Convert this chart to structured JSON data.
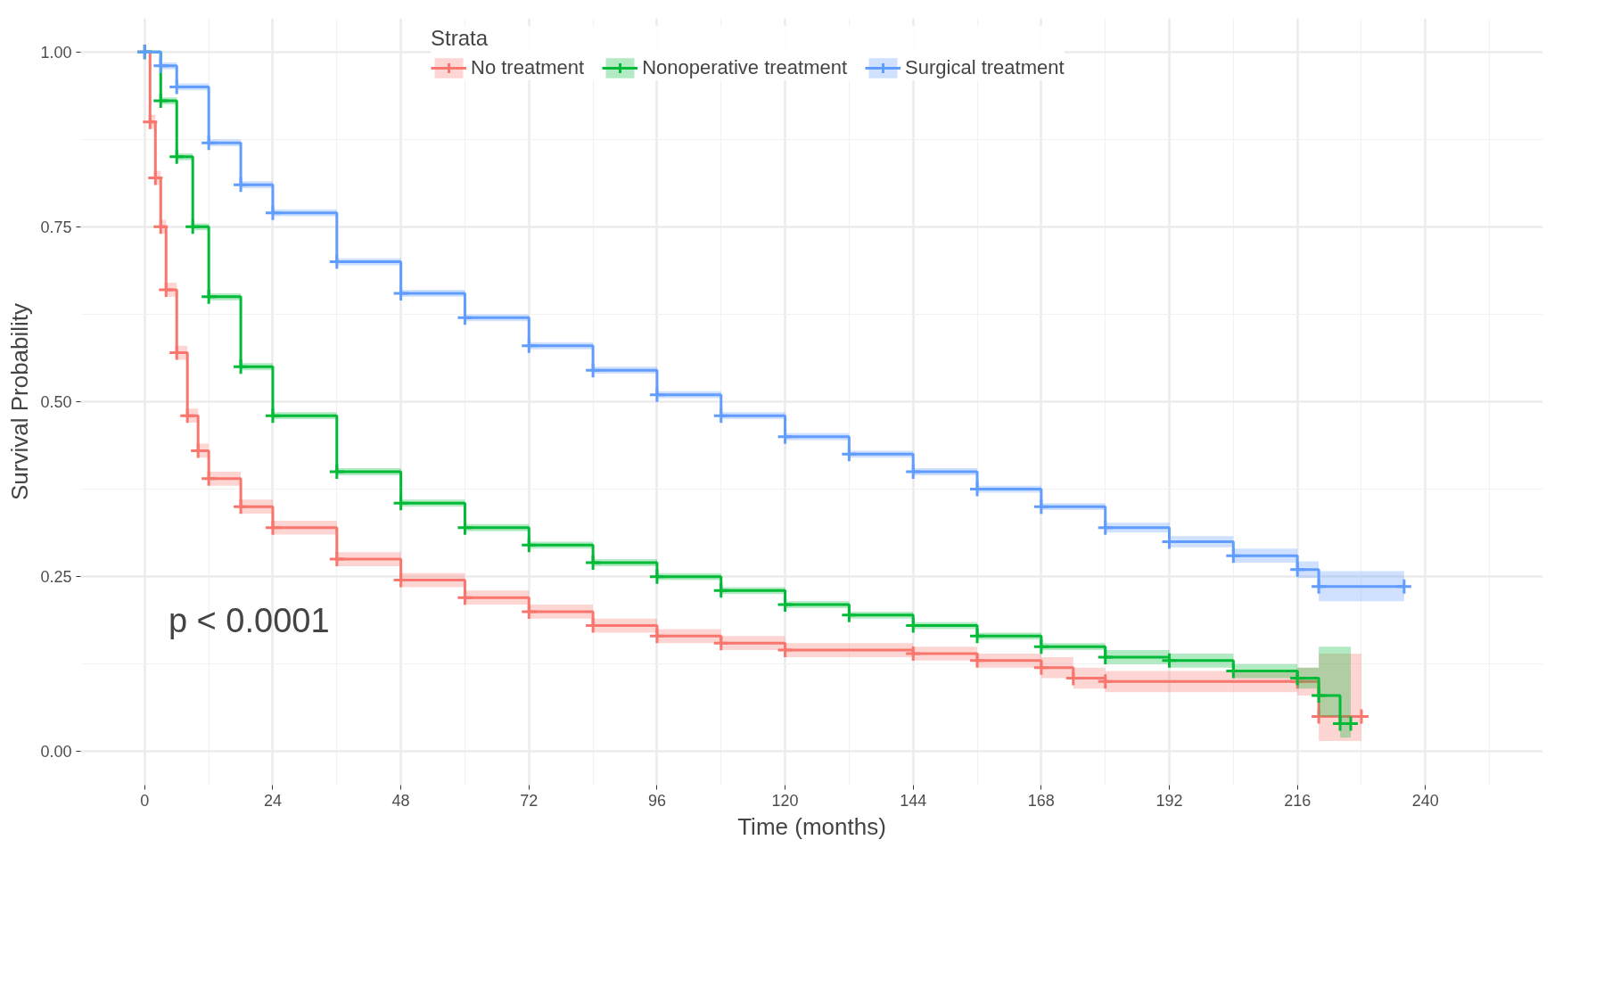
{
  "chart_data": {
    "type": "step",
    "xlabel": "Time (months)",
    "ylabel": "Survival Probability",
    "legend_title": "Strata",
    "legend": "top",
    "grid": true,
    "marker": "cross",
    "xlim": [
      -12,
      262
    ],
    "ylim": [
      -0.048,
      1.048
    ],
    "xticks": [
      0,
      24,
      48,
      72,
      96,
      120,
      144,
      168,
      192,
      216,
      240
    ],
    "yticks": [
      {
        "value": 0,
        "label": "0.00"
      },
      {
        "value": 0.25,
        "label": "0.25"
      },
      {
        "value": 0.5,
        "label": "0.50"
      },
      {
        "value": 0.75,
        "label": "0.75"
      },
      {
        "value": 1,
        "label": "1.00"
      }
    ],
    "annotations": [
      "p < 0.0001"
    ],
    "series": [
      {
        "name": "No treatment",
        "color": "#f8766d",
        "x": [
          0,
          1,
          2,
          3,
          4,
          6,
          8,
          10,
          12,
          18,
          24,
          36,
          48,
          60,
          72,
          84,
          96,
          108,
          120,
          144,
          156,
          168,
          174,
          180,
          216,
          220,
          228
        ],
        "values": [
          1.0,
          0.9,
          0.82,
          0.75,
          0.66,
          0.57,
          0.48,
          0.43,
          0.39,
          0.35,
          0.32,
          0.275,
          0.245,
          0.22,
          0.2,
          0.18,
          0.165,
          0.155,
          0.145,
          0.14,
          0.13,
          0.12,
          0.105,
          0.1,
          0.1,
          0.05,
          0.05
        ],
        "lower": [
          1.0,
          0.89,
          0.81,
          0.74,
          0.65,
          0.56,
          0.47,
          0.42,
          0.38,
          0.34,
          0.31,
          0.265,
          0.235,
          0.21,
          0.19,
          0.17,
          0.155,
          0.145,
          0.135,
          0.13,
          0.12,
          0.105,
          0.09,
          0.085,
          0.08,
          0.015,
          0.015
        ],
        "upper": [
          1.0,
          0.91,
          0.83,
          0.76,
          0.67,
          0.58,
          0.49,
          0.44,
          0.4,
          0.36,
          0.33,
          0.285,
          0.255,
          0.23,
          0.21,
          0.19,
          0.175,
          0.165,
          0.155,
          0.15,
          0.14,
          0.135,
          0.12,
          0.115,
          0.12,
          0.14,
          0.14
        ]
      },
      {
        "name": "Nonoperative treatment",
        "color": "#00ba38",
        "x": [
          0,
          3,
          6,
          9,
          12,
          18,
          24,
          36,
          48,
          60,
          72,
          84,
          96,
          108,
          120,
          132,
          144,
          156,
          168,
          180,
          192,
          204,
          216,
          220,
          224,
          226
        ],
        "values": [
          1.0,
          0.93,
          0.85,
          0.75,
          0.65,
          0.55,
          0.48,
          0.4,
          0.355,
          0.32,
          0.295,
          0.27,
          0.25,
          0.23,
          0.21,
          0.195,
          0.18,
          0.165,
          0.15,
          0.135,
          0.13,
          0.115,
          0.105,
          0.08,
          0.04,
          0.04
        ],
        "lower": [
          1.0,
          0.925,
          0.845,
          0.745,
          0.645,
          0.545,
          0.475,
          0.395,
          0.35,
          0.315,
          0.29,
          0.265,
          0.245,
          0.225,
          0.205,
          0.19,
          0.175,
          0.16,
          0.145,
          0.125,
          0.12,
          0.105,
          0.09,
          0.05,
          0.02,
          0.02
        ],
        "upper": [
          1.0,
          0.935,
          0.855,
          0.755,
          0.655,
          0.555,
          0.485,
          0.405,
          0.36,
          0.325,
          0.3,
          0.275,
          0.255,
          0.235,
          0.215,
          0.2,
          0.185,
          0.17,
          0.155,
          0.145,
          0.14,
          0.125,
          0.12,
          0.15,
          0.15,
          0.15
        ]
      },
      {
        "name": "Surgical treatment",
        "color": "#619cff",
        "x": [
          0,
          3,
          6,
          12,
          18,
          24,
          36,
          48,
          60,
          72,
          84,
          96,
          108,
          120,
          132,
          144,
          156,
          168,
          180,
          192,
          204,
          216,
          220,
          236
        ],
        "values": [
          1.0,
          0.98,
          0.95,
          0.87,
          0.81,
          0.77,
          0.7,
          0.655,
          0.62,
          0.58,
          0.545,
          0.51,
          0.48,
          0.45,
          0.425,
          0.4,
          0.375,
          0.35,
          0.32,
          0.3,
          0.28,
          0.26,
          0.236,
          0.236
        ],
        "lower": [
          1.0,
          0.975,
          0.945,
          0.865,
          0.805,
          0.765,
          0.695,
          0.65,
          0.615,
          0.575,
          0.54,
          0.505,
          0.475,
          0.445,
          0.42,
          0.395,
          0.37,
          0.345,
          0.313,
          0.292,
          0.27,
          0.248,
          0.215,
          0.215
        ],
        "upper": [
          1.0,
          0.985,
          0.955,
          0.875,
          0.815,
          0.775,
          0.705,
          0.66,
          0.625,
          0.585,
          0.55,
          0.515,
          0.485,
          0.455,
          0.43,
          0.405,
          0.38,
          0.355,
          0.327,
          0.308,
          0.29,
          0.272,
          0.258,
          0.258
        ]
      }
    ]
  }
}
